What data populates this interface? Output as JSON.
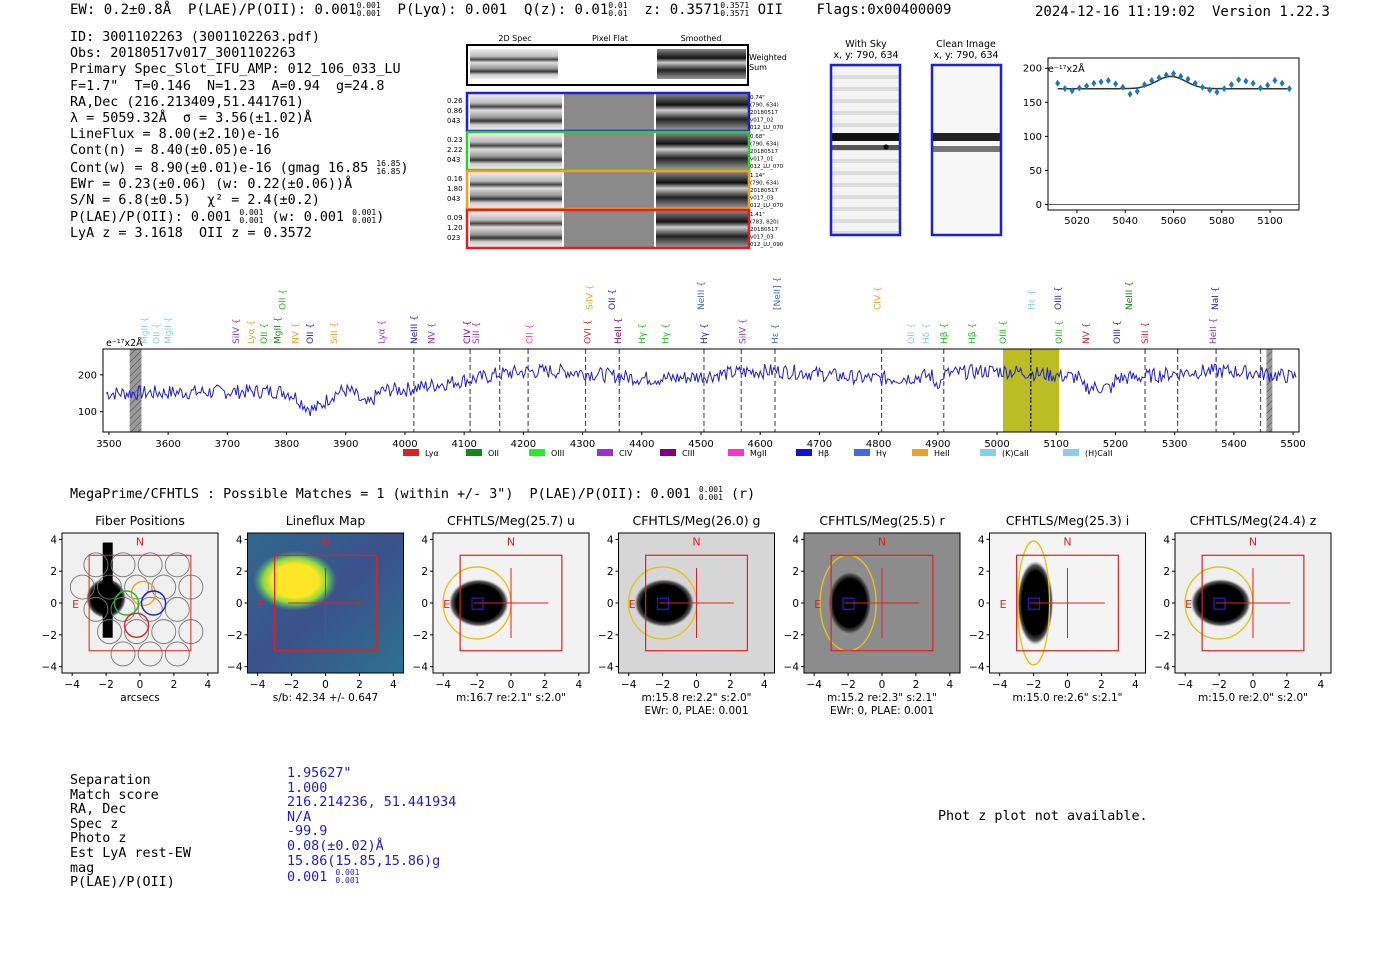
{
  "header": {
    "ew": "EW: 0.2±0.8Å",
    "plae": "P(LAE)/P(OII): 0.001",
    "plae_hi": "0.001",
    "plae_lo": "0.001",
    "plya": "P(Lyα): 0.001",
    "qz": "Q(z): 0.01",
    "qz_hi": "0.01",
    "qz_lo": "0.01",
    "z": "z: 0.3571",
    "z_hi": "0.3571",
    "z_lo": "0.3571",
    "z_line": "OII",
    "flags": "Flags:0x00400009",
    "datetime": "2024-12-16 11:19:02",
    "version": "Version 1.22.3"
  },
  "info": {
    "id": "ID: 3001102263 (3001102263.pdf)",
    "obs": "Obs: 20180517v017_3001102263",
    "primary": "Primary Spec_Slot_IFU_AMP: 012_106_033_LU",
    "fwhm": "F=1.7\"  T=0.146  N=1.23  A=0.94  g=24.8",
    "radec": "RA,Dec (216.213409,51.441761)",
    "lambda": "λ = 5059.32Å  σ = 3.56(±1.02)Å",
    "lineflux": "LineFlux = 8.00(±2.10)e-16",
    "contn": "Cont(n) = 8.40(±0.05)e-16",
    "contw": "Cont(w) = 8.90(±0.01)e-16 (gmag 16.85",
    "contw_hi": "16.85",
    "contw_lo": "16.85",
    "ewr": "EWr = 0.23(±0.06) (w: 0.22(±0.06))Å",
    "sn": "S/N = 6.8(±0.5)  χ² = 2.4(±0.2)",
    "plae": "P(LAE)/P(OII): 0.001",
    "plae_hi": "0.001",
    "plae_lo": "0.001",
    "plae_w": "(w: 0.001",
    "plae_w_hi": "0.001",
    "plae_w_lo": "0.001",
    "lya": "LyA z = 3.1618  OII z = 0.3572"
  },
  "fiber_stamps": {
    "col_2d": "2D Spec",
    "col_flat": "Pixel Flat",
    "col_smooth": "Smoothed",
    "weighted": "Weighted",
    "sum": "Sum",
    "rows": [
      {
        "l1": "0.26",
        "l2": "0.86",
        "l3": "043",
        "r1": "0.74\"",
        "r2": "(790, 634)",
        "r3": "20180517",
        "r4": "v017_02",
        "r5": "012_LU_070",
        "color": "#1f1fd0"
      },
      {
        "l1": "0.23",
        "l2": "2.22",
        "l3": "043",
        "r1": "0.68\"",
        "r2": "(790, 634)",
        "r3": "20180517",
        "r4": "v017_01",
        "r5": "012_LU_070",
        "color": "#2ecc2e"
      },
      {
        "l1": "0.16",
        "l2": "1.80",
        "l3": "043",
        "r1": "1.14\"",
        "r2": "(790, 634)",
        "r3": "20180517",
        "r4": "v017_03",
        "r5": "012_LU_070",
        "color": "#f0a020"
      },
      {
        "l1": "0.09",
        "l2": "1.20",
        "l3": "023",
        "r1": "1.41\"",
        "r2": "(783, 820)",
        "r3": "20180517",
        "r4": "v017_03",
        "r5": "012_LU_090",
        "color": "#e02020"
      }
    ]
  },
  "sky_images": {
    "with_sky": "With Sky",
    "with_sky_xy": "x, y: 790, 634",
    "clean": "Clean Image",
    "clean_xy": "x, y: 790, 634"
  },
  "zoom_chart": {
    "type": "scatter",
    "ylabel": "e⁻¹⁷x2Å",
    "x": [
      5012,
      5015,
      5018,
      5021,
      5024,
      5027,
      5030,
      5033,
      5036,
      5039,
      5042,
      5045,
      5048,
      5051,
      5054,
      5057,
      5060,
      5063,
      5066,
      5069,
      5072,
      5075,
      5078,
      5081,
      5084,
      5087,
      5090,
      5093,
      5096,
      5099,
      5102,
      5105,
      5108
    ],
    "y": [
      178,
      170,
      167,
      171,
      174,
      178,
      180,
      182,
      177,
      172,
      162,
      166,
      176,
      182,
      186,
      190,
      192,
      188,
      184,
      178,
      172,
      168,
      165,
      170,
      176,
      183,
      181,
      178,
      171,
      175,
      182,
      178,
      170
    ],
    "fit_base": 170,
    "fit_peak": 5059,
    "fit_amp": 18,
    "fit_sigma": 6,
    "xlim": [
      5008,
      5112
    ],
    "ylim": [
      -8,
      215
    ],
    "xticks": [
      "5020",
      "5040",
      "5060",
      "5080",
      "5100"
    ],
    "yticks": [
      "0",
      "50",
      "100",
      "150",
      "200"
    ],
    "color": "#1f77b4"
  },
  "full_spectrum": {
    "type": "line",
    "ylabel": "e⁻¹⁷x2Å",
    "xlim": [
      3490,
      5510
    ],
    "ylim": [
      45,
      270
    ],
    "xticks": [
      "3500",
      "3600",
      "3700",
      "3800",
      "3900",
      "4000",
      "4100",
      "4200",
      "4300",
      "4400",
      "4500",
      "4600",
      "4700",
      "4800",
      "4900",
      "5000",
      "5100",
      "5200",
      "5300",
      "5400",
      "5500"
    ],
    "yticks": [
      "100",
      "200"
    ],
    "highlight": [
      5010,
      5105
    ],
    "hatched": [
      [
        3535,
        3555
      ],
      [
        5455,
        5465
      ]
    ],
    "dashed_lines": [
      4015,
      4110,
      4160,
      4208,
      4305,
      4362,
      4505,
      4568,
      4625,
      4805,
      4910,
      5057,
      5250,
      5305,
      5370,
      5445
    ],
    "line_labels": [
      {
        "t": "MgII",
        "x": 3560,
        "c": "#87ceeb"
      },
      {
        "t": "MgII",
        "x": 3600,
        "c": "#87ceeb"
      },
      {
        "t": "SiIV",
        "x": 3715,
        "c": "#9933cc"
      },
      {
        "t": "Lyα",
        "x": 3740,
        "c": "#f0a020"
      },
      {
        "t": "OII",
        "x": 3762,
        "c": "#22bb22"
      },
      {
        "t": "MgII",
        "x": 3785,
        "c": "#118811"
      },
      {
        "t": "NV",
        "x": 3815,
        "c": "#f0a020"
      },
      {
        "t": "OII",
        "x": 3840,
        "c": "#1f1fd0"
      },
      {
        "t": "SiII",
        "x": 3880,
        "c": "#f0a020"
      },
      {
        "t": "Lyα",
        "x": 3960,
        "c": "#9933cc"
      },
      {
        "t": "NeIII",
        "x": 4015,
        "c": "#1f1fd0"
      },
      {
        "t": "NV",
        "x": 4045,
        "c": "#9933cc"
      },
      {
        "t": "CIV",
        "x": 4105,
        "c": "#800080"
      },
      {
        "t": "SiII",
        "x": 4120,
        "c": "#9933cc"
      },
      {
        "t": "CII",
        "x": 4210,
        "c": "#ff33cc"
      },
      {
        "t": "OVI",
        "x": 4308,
        "c": "#e02020"
      },
      {
        "t": "HeII",
        "x": 4360,
        "c": "#800080"
      },
      {
        "t": "Hγ",
        "x": 4400,
        "c": "#22bb22"
      },
      {
        "t": "Hγ",
        "x": 4440,
        "c": "#22bb22"
      },
      {
        "t": "Hγ",
        "x": 4505,
        "c": "#1f1fd0"
      },
      {
        "t": "SiIV",
        "x": 4570,
        "c": "#9933cc"
      },
      {
        "t": "Hε",
        "x": 4625,
        "c": "#4169e1"
      },
      {
        "t": "OII",
        "x": 4855,
        "c": "#87ceeb"
      },
      {
        "t": "Hδ",
        "x": 4880,
        "c": "#87ceeb"
      },
      {
        "t": "Hβ",
        "x": 4910,
        "c": "#22bb22"
      },
      {
        "t": "Hβ",
        "x": 4958,
        "c": "#22bb22"
      },
      {
        "t": "OIII",
        "x": 5010,
        "c": "#22bb22"
      },
      {
        "t": "OIII",
        "x": 5105,
        "c": "#22bb22"
      },
      {
        "t": "NV",
        "x": 5150,
        "c": "#e02020"
      },
      {
        "t": "OIII",
        "x": 5203,
        "c": "#1f1fd0"
      },
      {
        "t": "SiII",
        "x": 5250,
        "c": "#e02020"
      },
      {
        "t": "HeII",
        "x": 5365,
        "c": "#9933cc"
      },
      {
        "t": "OII",
        "x": 3580,
        "c": "#87ceeb"
      }
    ],
    "upper_labels": [
      {
        "t": "OII",
        "x": 3793,
        "c": "#22bb22"
      },
      {
        "t": "SiIV",
        "x": 4312,
        "c": "#f0a020"
      },
      {
        "t": "OII",
        "x": 4350,
        "c": "#1f1fd0"
      },
      {
        "t": "NeIII",
        "x": 4500,
        "c": "#4169e1"
      },
      {
        "t": "[NeII]",
        "x": 4628,
        "c": "#4169e1"
      },
      {
        "t": "CIV",
        "x": 4798,
        "c": "#f0a020"
      },
      {
        "t": "Hε",
        "x": 5058,
        "c": "#87ceeb"
      },
      {
        "t": "OIII",
        "x": 5103,
        "c": "#1f1fd0"
      },
      {
        "t": "NeIII",
        "x": 5223,
        "c": "#118811"
      },
      {
        "t": "NaI",
        "x": 5368,
        "c": "#1f1fd0"
      }
    ],
    "legend": [
      {
        "t": "Lyα",
        "c": "#e02020"
      },
      {
        "t": "OII",
        "c": "#118811"
      },
      {
        "t": "OIII",
        "c": "#22ee22"
      },
      {
        "t": "CIV",
        "c": "#9933cc"
      },
      {
        "t": "CIII",
        "c": "#800080"
      },
      {
        "t": "MgII",
        "c": "#ff33cc"
      },
      {
        "t": "Hβ",
        "c": "#1010e0"
      },
      {
        "t": "Hγ",
        "c": "#4169e1"
      },
      {
        "t": "HeII",
        "c": "#f0a020"
      },
      {
        "t": "(K)CaII",
        "c": "#87ceeb"
      },
      {
        "t": "(H)CaII",
        "c": "#87ceeb"
      }
    ],
    "color": "#1f1fd0"
  },
  "match": {
    "heading": "MegaPrime/CFHTLS : Possible Matches = 1 (within +/- 3\")  P(LAE)/P(OII): 0.001",
    "heading_hi": "0.001",
    "heading_lo": "0.001",
    "heading_tail": "(r)"
  },
  "cutouts": [
    {
      "title": "Fiber Positions",
      "cap1": "arcsecs",
      "cap2": "",
      "kind": "fiber"
    },
    {
      "title": "Lineflux Map",
      "cap1": "s/b: 42.34 +/- 0.647",
      "cap2": "",
      "kind": "lineflux"
    },
    {
      "title": "CFHTLS/Meg(25.7) u",
      "cap1": "m:16.7  re:2.1\"  s:2.0\"",
      "cap2": "",
      "kind": "band",
      "bg": "#f2f2f2"
    },
    {
      "title": "CFHTLS/Meg(26.0) g",
      "cap1": "m:15.8  re:2.2\"  s:2.0\"",
      "cap2": "EWr: 0, PLAE: 0.001",
      "kind": "band",
      "bg": "#d6d6d6"
    },
    {
      "title": "CFHTLS/Meg(25.5) r",
      "cap1": "m:15.2  re:2.3\"  s:2.1\"",
      "cap2": "EWr: 0, PLAE: 0.001",
      "kind": "band",
      "bg": "#8c8c8c"
    },
    {
      "title": "CFHTLS/Meg(25.3) i",
      "cap1": "m:15.0  re:2.6\"  s:2.1\"",
      "cap2": "",
      "kind": "band",
      "bg": "#f4f4f4"
    },
    {
      "title": "CFHTLS/Meg(24.4) z",
      "cap1": "m:15.0  re:2.0\"  s:2.0\"",
      "cap2": "",
      "kind": "band",
      "bg": "#efefef"
    }
  ],
  "cutout_axis": {
    "north": "N",
    "east": "E",
    "ticks": [
      "−4",
      "−2",
      "0",
      "2",
      "4"
    ]
  },
  "table": {
    "labels": [
      "Separation",
      "Match score",
      "RA, Dec",
      "Spec z",
      "Photo z",
      "Est LyA rest-EW",
      "mag",
      "P(LAE)/P(OII)"
    ],
    "values": [
      "1.95627\"",
      "1.000",
      "216.214236, 51.441934",
      "N/A",
      "-99.9",
      "0.08(±0.02)Å",
      "15.86(15.85,15.86)g",
      "0.001"
    ],
    "plae_hi": "0.001",
    "plae_lo": "0.001"
  },
  "photz_note": "Phot z plot not available."
}
